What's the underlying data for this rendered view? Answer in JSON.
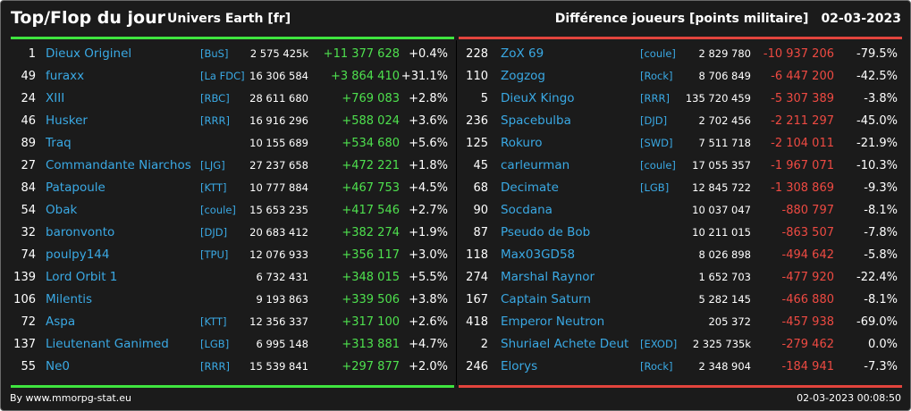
{
  "header": {
    "title": "Top/Flop du jour",
    "universe": "Univers Earth [fr]",
    "metric": "Différence joueurs [points militaire]",
    "date": "02-03-2023"
  },
  "footer": {
    "credit": "By www.mmorpg-stat.eu",
    "timestamp": "02-03-2023 00:08:50"
  },
  "colors": {
    "gain": "#4ee04e",
    "loss": "#ee4a42",
    "link": "#3aa9e4",
    "background": "#1b1b1b"
  },
  "top": [
    {
      "rank": "1",
      "name": "Dieux Originel",
      "ally": "[BuS]",
      "score": "2 575 425k",
      "diff": "+11 377 628",
      "pct": "+0.4%"
    },
    {
      "rank": "49",
      "name": "furaxx",
      "ally": "[La FDC]",
      "score": "16 306 584",
      "diff": "+3 864 410",
      "pct": "+31.1%"
    },
    {
      "rank": "24",
      "name": "XIII",
      "ally": "[RBC]",
      "score": "28 611 680",
      "diff": "+769 083",
      "pct": "+2.8%"
    },
    {
      "rank": "46",
      "name": "Husker",
      "ally": "[RRR]",
      "score": "16 916 296",
      "diff": "+588 024",
      "pct": "+3.6%"
    },
    {
      "rank": "89",
      "name": "Traq",
      "ally": "",
      "score": "10 155 689",
      "diff": "+534 680",
      "pct": "+5.6%"
    },
    {
      "rank": "27",
      "name": "Commandante Niarchos",
      "ally": "[LJG]",
      "score": "27 237 658",
      "diff": "+472 221",
      "pct": "+1.8%"
    },
    {
      "rank": "84",
      "name": "Patapoule",
      "ally": "[KTT]",
      "score": "10 777 884",
      "diff": "+467 753",
      "pct": "+4.5%"
    },
    {
      "rank": "54",
      "name": "Obak",
      "ally": "[coule]",
      "score": "15 653 235",
      "diff": "+417 546",
      "pct": "+2.7%"
    },
    {
      "rank": "32",
      "name": "baronvonto",
      "ally": "[DJD]",
      "score": "20 683 412",
      "diff": "+382 274",
      "pct": "+1.9%"
    },
    {
      "rank": "74",
      "name": "poulpy144",
      "ally": "[TPU]",
      "score": "12 076 933",
      "diff": "+356 117",
      "pct": "+3.0%"
    },
    {
      "rank": "139",
      "name": "Lord Orbit 1",
      "ally": "",
      "score": "6 732 431",
      "diff": "+348 015",
      "pct": "+5.5%"
    },
    {
      "rank": "106",
      "name": "Milentis",
      "ally": "",
      "score": "9 193 863",
      "diff": "+339 506",
      "pct": "+3.8%"
    },
    {
      "rank": "72",
      "name": "Aspa",
      "ally": "[KTT]",
      "score": "12 356 337",
      "diff": "+317 100",
      "pct": "+2.6%"
    },
    {
      "rank": "137",
      "name": "Lieutenant Ganimed",
      "ally": "[LGB]",
      "score": "6 995 148",
      "diff": "+313 881",
      "pct": "+4.7%"
    },
    {
      "rank": "55",
      "name": "Ne0",
      "ally": "[RRR]",
      "score": "15 539 841",
      "diff": "+297 877",
      "pct": "+2.0%"
    }
  ],
  "flop": [
    {
      "rank": "228",
      "name": "ZoX 69",
      "ally": "[coule]",
      "score": "2 829 780",
      "diff": "-10 937 206",
      "pct": "-79.5%"
    },
    {
      "rank": "110",
      "name": "Zogzog",
      "ally": "[Rock]",
      "score": "8 706 849",
      "diff": "-6 447 200",
      "pct": "-42.5%"
    },
    {
      "rank": "5",
      "name": "DieuX Kingo",
      "ally": "[RRR]",
      "score": "135 720 459",
      "diff": "-5 307 389",
      "pct": "-3.8%"
    },
    {
      "rank": "236",
      "name": "Spacebulba",
      "ally": "[DJD]",
      "score": "2 702 456",
      "diff": "-2 211 297",
      "pct": "-45.0%"
    },
    {
      "rank": "125",
      "name": "Rokuro",
      "ally": "[SWD]",
      "score": "7 511 718",
      "diff": "-2 104 011",
      "pct": "-21.9%"
    },
    {
      "rank": "45",
      "name": "carleurman",
      "ally": "[coule]",
      "score": "17 055 357",
      "diff": "-1 967 071",
      "pct": "-10.3%"
    },
    {
      "rank": "68",
      "name": "Decimate",
      "ally": "[LGB]",
      "score": "12 845 722",
      "diff": "-1 308 869",
      "pct": "-9.3%"
    },
    {
      "rank": "90",
      "name": "Socdana",
      "ally": "",
      "score": "10 037 047",
      "diff": "-880 797",
      "pct": "-8.1%"
    },
    {
      "rank": "87",
      "name": "Pseudo de Bob",
      "ally": "",
      "score": "10 211 015",
      "diff": "-863 507",
      "pct": "-7.8%"
    },
    {
      "rank": "118",
      "name": "Max03GD58",
      "ally": "",
      "score": "8 026 898",
      "diff": "-494 642",
      "pct": "-5.8%"
    },
    {
      "rank": "274",
      "name": "Marshal Raynor",
      "ally": "",
      "score": "1 652 703",
      "diff": "-477 920",
      "pct": "-22.4%"
    },
    {
      "rank": "167",
      "name": "Captain Saturn",
      "ally": "",
      "score": "5 282 145",
      "diff": "-466 880",
      "pct": "-8.1%"
    },
    {
      "rank": "418",
      "name": "Emperor Neutron",
      "ally": "",
      "score": "205 372",
      "diff": "-457 938",
      "pct": "-69.0%"
    },
    {
      "rank": "2",
      "name": "Shuriael Achete Deut",
      "ally": "[EXOD]",
      "score": "2 325 735k",
      "diff": "-279 462",
      "pct": "0.0%"
    },
    {
      "rank": "246",
      "name": "Elorys",
      "ally": "[Rock]",
      "score": "2 348 904",
      "diff": "-184 941",
      "pct": "-7.3%"
    }
  ]
}
